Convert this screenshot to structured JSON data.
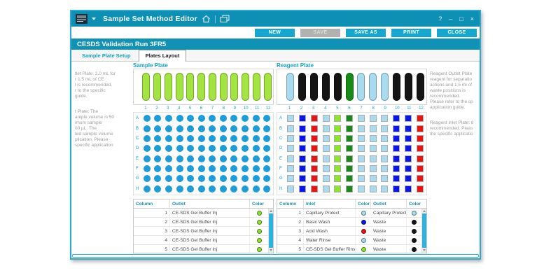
{
  "palette": {
    "teal": "#0e90b4",
    "accent": "#16a0c8",
    "trough_green": "#a2e440",
    "sample_well_blue": "#1c9cd9",
    "light_blue": "#a8daf0",
    "blue": "#0a17e5",
    "red": "#e81414",
    "bright_green": "#8ae62b",
    "dark_green": "#178a17",
    "black": "#141414"
  },
  "titlebar": {
    "title": "Sample Set Method Editor",
    "controls": {
      "help": "?",
      "minimize": "–",
      "maximize": "□",
      "close": "×"
    }
  },
  "toolbar": {
    "buttons": [
      {
        "name": "new-button",
        "label": "NEW",
        "enabled": true
      },
      {
        "name": "save-button",
        "label": "SAVE",
        "enabled": false
      },
      {
        "name": "save-as-button",
        "label": "SAVE AS",
        "enabled": true
      },
      {
        "name": "print-button",
        "label": "PRINT",
        "enabled": true
      },
      {
        "name": "close-button",
        "label": "CLOSE",
        "enabled": true
      }
    ]
  },
  "header": {
    "title": "CESDS Validation Run 3FR5"
  },
  "tabs": [
    {
      "label": "Sample Plate Setup",
      "active": false
    },
    {
      "label": "Plates Layout",
      "active": true
    }
  ],
  "left_panel": {
    "para1_lines": [
      "tlet Plate: 2.0 mL for",
      "r 1.5 mL of CE",
      "l is recommended.",
      "r to the specific",
      "guide."
    ],
    "para2_lines": [
      "t Plate: The",
      "ample volume is 50",
      "imum sample",
      "00 µL. The",
      "ted sample volume",
      "plication. Please",
      "specific application"
    ]
  },
  "right_panel": {
    "para1_lines": [
      "Reagent Outlet Plate",
      "reagent for separatio",
      "actions and 1.5 ml of",
      "waste positions is",
      "recommended.",
      "Please refer to the sp",
      "application guide."
    ],
    "para2_lines": [
      "Reagent Inlet Plate: 8",
      "recommended. Pleas",
      "the specific applicatio"
    ]
  },
  "sample_plate": {
    "title": "Sample Plate",
    "trough_colors": [
      "trough_green",
      "trough_green",
      "trough_green",
      "trough_green",
      "trough_green",
      "trough_green",
      "trough_green",
      "trough_green",
      "trough_green",
      "trough_green",
      "trough_green",
      "trough_green"
    ],
    "column_numbers": [
      "1",
      "2",
      "3",
      "4",
      "5",
      "6",
      "7",
      "8",
      "9",
      "10",
      "11",
      "12"
    ],
    "row_labels": [
      "A",
      "B",
      "C",
      "D",
      "E",
      "F",
      "G",
      "H"
    ],
    "well_shape": "circle",
    "well_colors_by_column": [
      "sample_well_blue",
      "sample_well_blue",
      "sample_well_blue",
      "sample_well_blue",
      "sample_well_blue",
      "sample_well_blue",
      "sample_well_blue",
      "sample_well_blue",
      "sample_well_blue",
      "sample_well_blue",
      "sample_well_blue",
      "sample_well_blue"
    ]
  },
  "reagent_plate": {
    "title": "Reagent Plate",
    "trough_colors": [
      "light_blue",
      "black",
      "black",
      "black",
      "black",
      "dark_green",
      "light_blue",
      "light_blue",
      "light_blue",
      "black",
      "black",
      "black"
    ],
    "column_numbers": [
      "1",
      "2",
      "3",
      "4",
      "5",
      "6",
      "7",
      "8",
      "9",
      "10",
      "11",
      "12"
    ],
    "row_labels": [
      "A",
      "B",
      "C",
      "D",
      "E",
      "F",
      "G",
      "H"
    ],
    "well_shape": "square",
    "well_colors_by_column": [
      "light_blue",
      "blue",
      "red",
      "light_blue",
      "bright_green",
      "dark_green",
      "light_blue",
      "light_blue",
      "light_blue",
      "blue",
      "blue",
      "red"
    ]
  },
  "sample_table": {
    "headers": [
      "Column",
      "Outlet",
      "Color"
    ],
    "rows": [
      {
        "column": "1",
        "outlet": "CE-SDS Gel Buffer Inj",
        "color": "bright_green"
      },
      {
        "column": "2",
        "outlet": "CE-SDS Gel Buffer Inj",
        "color": "bright_green"
      },
      {
        "column": "3",
        "outlet": "CE-SDS Gel Buffer Inj",
        "color": "bright_green"
      },
      {
        "column": "4",
        "outlet": "CE-SDS Gel Buffer Inj",
        "color": "bright_green"
      },
      {
        "column": "5",
        "outlet": "CE-SDS Gel Buffer Inj",
        "color": "bright_green"
      }
    ]
  },
  "reagent_table": {
    "headers": [
      "Column",
      "Inlet",
      "Color",
      "Outlet",
      "Color"
    ],
    "rows": [
      {
        "column": "1",
        "inlet": "Capillary Protect",
        "inlet_color": "light_blue",
        "outlet": "Capillary Protect",
        "outlet_color": "light_blue"
      },
      {
        "column": "2",
        "inlet": "Basic Wash",
        "inlet_color": "blue",
        "outlet": "Waste",
        "outlet_color": "black"
      },
      {
        "column": "3",
        "inlet": "Acid Wash",
        "inlet_color": "red",
        "outlet": "Waste",
        "outlet_color": "black"
      },
      {
        "column": "4",
        "inlet": "Water Rinse",
        "inlet_color": "light_blue",
        "outlet": "Waste",
        "outlet_color": "black"
      },
      {
        "column": "5",
        "inlet": "CE-SDS Gel Buffer Rinse",
        "inlet_color": "bright_green",
        "outlet": "Waste",
        "outlet_color": "black"
      }
    ]
  }
}
